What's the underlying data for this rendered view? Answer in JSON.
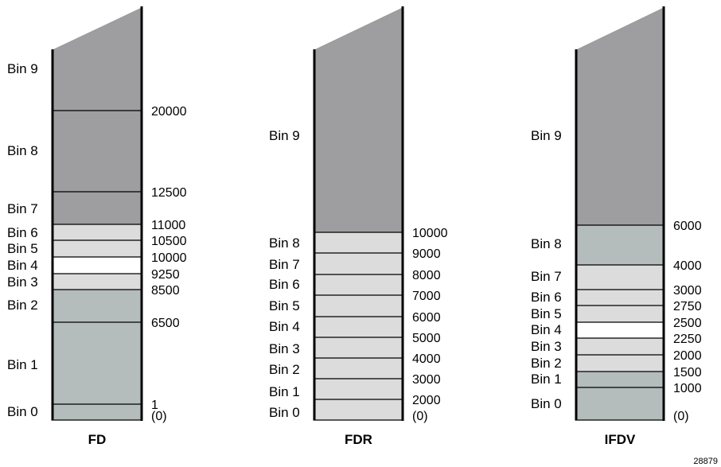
{
  "figure_id": "28879",
  "colors": {
    "dark_gray": "#9e9ea1",
    "green_gray": "#b4bcbc",
    "light_gray": "#dcdcdc",
    "white": "#ffffff",
    "line": "#000000"
  },
  "columns": [
    {
      "name": "FD",
      "bins": [
        {
          "label": "Bin 0",
          "lower": 0,
          "upper": 1,
          "fill": "green_gray"
        },
        {
          "label": "Bin 1",
          "lower": 1,
          "upper": 6500,
          "fill": "green_gray"
        },
        {
          "label": "Bin 2",
          "lower": 6500,
          "upper": 8500,
          "fill": "green_gray"
        },
        {
          "label": "Bin 3",
          "lower": 8500,
          "upper": 9250,
          "fill": "light_gray"
        },
        {
          "label": "Bin 4",
          "lower": 9250,
          "upper": 10000,
          "fill": "white"
        },
        {
          "label": "Bin 5",
          "lower": 10000,
          "upper": 10500,
          "fill": "light_gray"
        },
        {
          "label": "Bin 6",
          "lower": 10500,
          "upper": 11000,
          "fill": "light_gray"
        },
        {
          "label": "Bin 7",
          "lower": 11000,
          "upper": 12500,
          "fill": "dark_gray"
        },
        {
          "label": "Bin 8",
          "lower": 12500,
          "upper": 20000,
          "fill": "dark_gray"
        },
        {
          "label": "Bin 9",
          "lower": 20000,
          "upper": null,
          "fill": "dark_gray"
        }
      ],
      "thresholds": [
        "1",
        "6500",
        "8500",
        "9250",
        "10000",
        "10500",
        "11000",
        "12500",
        "20000"
      ],
      "zero_label": "(0)"
    },
    {
      "name": "FDR",
      "bins": [
        {
          "label": "Bin 0",
          "lower": 0,
          "upper": 2000,
          "fill": "light_gray"
        },
        {
          "label": "Bin 1",
          "lower": 2000,
          "upper": 3000,
          "fill": "light_gray"
        },
        {
          "label": "Bin 2",
          "lower": 3000,
          "upper": 4000,
          "fill": "light_gray"
        },
        {
          "label": "Bin 3",
          "lower": 4000,
          "upper": 5000,
          "fill": "light_gray"
        },
        {
          "label": "Bin 4",
          "lower": 5000,
          "upper": 6000,
          "fill": "light_gray"
        },
        {
          "label": "Bin 5",
          "lower": 6000,
          "upper": 7000,
          "fill": "light_gray"
        },
        {
          "label": "Bin 6",
          "lower": 7000,
          "upper": 8000,
          "fill": "light_gray"
        },
        {
          "label": "Bin 7",
          "lower": 8000,
          "upper": 9000,
          "fill": "light_gray"
        },
        {
          "label": "Bin 8",
          "lower": 9000,
          "upper": 10000,
          "fill": "light_gray"
        },
        {
          "label": "Bin 9",
          "lower": 10000,
          "upper": null,
          "fill": "dark_gray"
        }
      ],
      "thresholds": [
        "2000",
        "3000",
        "4000",
        "5000",
        "6000",
        "7000",
        "8000",
        "9000",
        "10000"
      ],
      "zero_label": "(0)"
    },
    {
      "name": "IFDV",
      "bins": [
        {
          "label": "Bin 0",
          "lower": 0,
          "upper": 1000,
          "fill": "green_gray"
        },
        {
          "label": "Bin 1",
          "lower": 1000,
          "upper": 1500,
          "fill": "green_gray"
        },
        {
          "label": "Bin 2",
          "lower": 1500,
          "upper": 2000,
          "fill": "light_gray"
        },
        {
          "label": "Bin 3",
          "lower": 2000,
          "upper": 2250,
          "fill": "light_gray"
        },
        {
          "label": "Bin 4",
          "lower": 2250,
          "upper": 2500,
          "fill": "white"
        },
        {
          "label": "Bin 5",
          "lower": 2500,
          "upper": 2750,
          "fill": "light_gray"
        },
        {
          "label": "Bin 6",
          "lower": 2750,
          "upper": 3000,
          "fill": "light_gray"
        },
        {
          "label": "Bin 7",
          "lower": 3000,
          "upper": 4000,
          "fill": "light_gray"
        },
        {
          "label": "Bin 8",
          "lower": 4000,
          "upper": 6000,
          "fill": "green_gray"
        },
        {
          "label": "Bin 9",
          "lower": 6000,
          "upper": null,
          "fill": "dark_gray"
        }
      ],
      "thresholds": [
        "1000",
        "1500",
        "2000",
        "2250",
        "2500",
        "2750",
        "3000",
        "4000",
        "6000"
      ],
      "zero_label": "(0)"
    }
  ]
}
